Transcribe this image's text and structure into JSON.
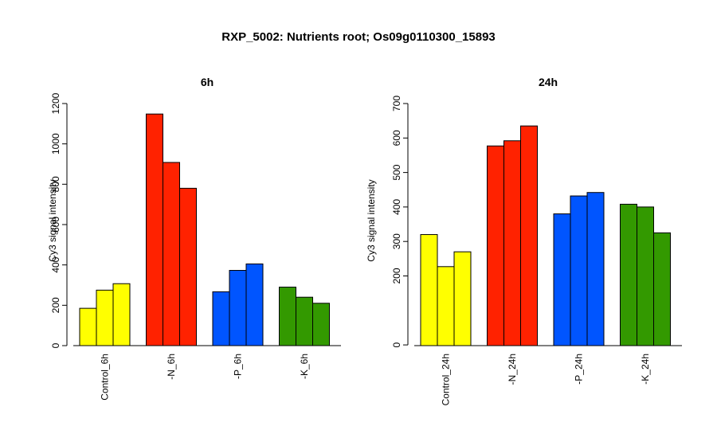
{
  "figure": {
    "title": "RXP_5002: Nutrients root; Os09g0110300_15893"
  },
  "colors": {
    "Control": "#ffff00",
    "N": "#ff2200",
    "P": "#0055ff",
    "K": "#339900"
  },
  "chart_data": [
    {
      "type": "bar",
      "title": "6h",
      "ylabel": "Cy3 signal intensity",
      "ylim": [
        0,
        1200
      ],
      "yticks": [
        "0",
        "200",
        "400",
        "600",
        "800",
        "1000",
        "1200"
      ],
      "groups": [
        {
          "label": "Control_6h",
          "color": "Control",
          "values": [
            185,
            275,
            307
          ]
        },
        {
          "label": "-N_6h",
          "color": "N",
          "values": [
            1148,
            908,
            780
          ]
        },
        {
          "label": "-P_6h",
          "color": "P",
          "values": [
            267,
            373,
            405
          ]
        },
        {
          "label": "-K_6h",
          "color": "K",
          "values": [
            290,
            240,
            210
          ]
        }
      ]
    },
    {
      "type": "bar",
      "title": "24h",
      "ylabel": "Cy3 signal intensity",
      "ylim": [
        0,
        700
      ],
      "yticks": [
        "0",
        "200",
        "300",
        "400",
        "500",
        "600",
        "700"
      ],
      "groups": [
        {
          "label": "Control_24h",
          "color": "Control",
          "values": [
            320,
            227,
            270
          ]
        },
        {
          "label": "-N_24h",
          "color": "N",
          "values": [
            577,
            592,
            635
          ]
        },
        {
          "label": "-P_24h",
          "color": "P",
          "values": [
            380,
            432,
            442
          ]
        },
        {
          "label": "-K_24h",
          "color": "K",
          "values": [
            408,
            400,
            325
          ]
        }
      ]
    }
  ]
}
